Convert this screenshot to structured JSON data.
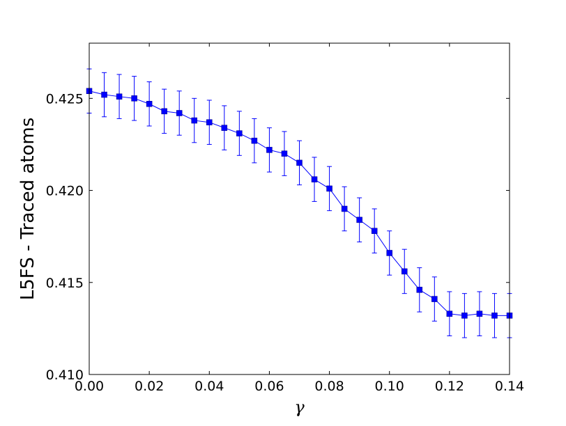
{
  "chart_data": {
    "type": "line",
    "xlabel": "γ",
    "ylabel": "L5FS - Traced atoms",
    "xlim": [
      0.0,
      0.14
    ],
    "ylim": [
      0.41,
      0.428
    ],
    "xticks": [
      "0.00",
      "0.02",
      "0.04",
      "0.06",
      "0.08",
      "0.10",
      "0.12",
      "0.14"
    ],
    "yticks": [
      "0.410",
      "0.415",
      "0.420",
      "0.425"
    ],
    "grid": false,
    "legend": "none",
    "series": [
      {
        "color": "#0000ff",
        "marker": "square",
        "x": [
          0.0,
          0.005,
          0.01,
          0.015,
          0.02,
          0.025,
          0.03,
          0.035,
          0.04,
          0.045,
          0.05,
          0.055,
          0.06,
          0.065,
          0.07,
          0.075,
          0.08,
          0.085,
          0.09,
          0.095,
          0.1,
          0.105,
          0.11,
          0.115,
          0.12,
          0.125,
          0.13,
          0.135,
          0.14
        ],
        "y": [
          0.4254,
          0.4252,
          0.4251,
          0.425,
          0.4247,
          0.4243,
          0.4242,
          0.4238,
          0.4237,
          0.4234,
          0.4231,
          0.4227,
          0.4222,
          0.422,
          0.4215,
          0.4206,
          0.4201,
          0.419,
          0.4184,
          0.4178,
          0.4166,
          0.4156,
          0.4146,
          0.4141,
          0.4133,
          0.4132,
          0.4133,
          0.4132,
          0.4132
        ],
        "yerr": [
          0.0012,
          0.0012,
          0.0012,
          0.0012,
          0.0012,
          0.0012,
          0.0012,
          0.0012,
          0.0012,
          0.0012,
          0.0012,
          0.0012,
          0.0012,
          0.0012,
          0.0012,
          0.0012,
          0.0012,
          0.0012,
          0.0012,
          0.0012,
          0.0012,
          0.0012,
          0.0012,
          0.0012,
          0.0012,
          0.0012,
          0.0012,
          0.0012,
          0.0012
        ]
      }
    ]
  }
}
